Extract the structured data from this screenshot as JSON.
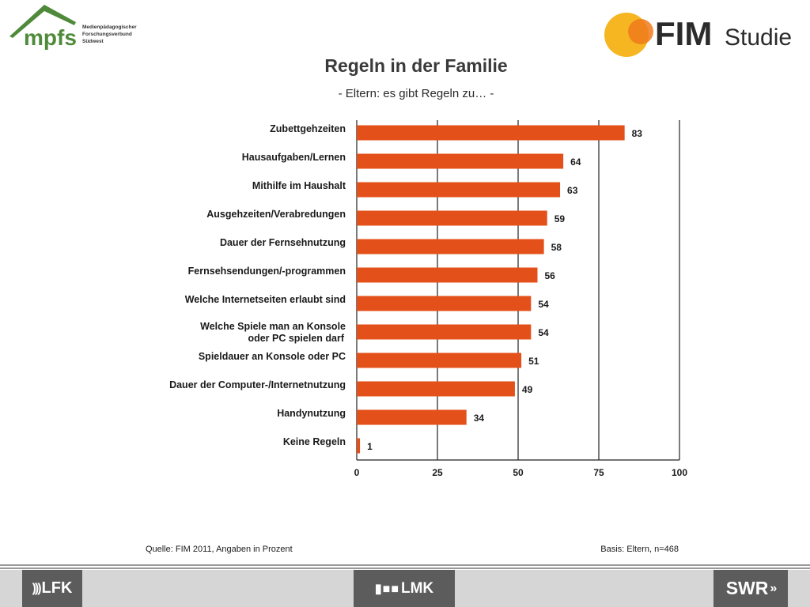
{
  "logos": {
    "mpfs": {
      "name": "mpfs",
      "lines": [
        "Medienpädagogischer",
        "Forschungsverbund",
        "Südwest"
      ]
    },
    "fim": {
      "name": "FIM",
      "suffix": "Studie"
    },
    "lfk": "LFK",
    "lmk": "LMK",
    "swr": "SWR"
  },
  "colors": {
    "bar": "#e4501a",
    "mpfs_green": "#4f8a3a",
    "fim_yellow": "#f5b622",
    "fim_orange": "#f07a1c",
    "footer_dark": "#5c5c5c",
    "footer_light": "#d6d6d6"
  },
  "chart_data": {
    "type": "bar",
    "orientation": "horizontal",
    "title": "Regeln in der Familie",
    "subtitle": "- Eltern: es gibt Regeln zu… -",
    "categories": [
      "Zubettgehzeiten",
      "Hausaufgaben/Lernen",
      "Mithilfe im Haushalt",
      "Ausgehzeiten/Verabredungen",
      "Dauer der Fernsehnutzung",
      "Fernsehsendungen/-programmen",
      "Welche Internetseiten erlaubt sind",
      "Welche Spiele man an Konsole oder PC spielen darf",
      "Spieldauer an Konsole oder PC",
      "Dauer der Computer-/Internetnutzung",
      "Handynutzung",
      "Keine Regeln"
    ],
    "values": [
      83,
      64,
      63,
      59,
      58,
      56,
      54,
      54,
      51,
      49,
      34,
      1
    ],
    "xlim": [
      0,
      100
    ],
    "ticks": [
      0,
      25,
      50,
      75,
      100
    ],
    "grid": true,
    "source": "Quelle: FIM 2011, Angaben in Prozent",
    "basis": "Basis: Eltern, n=468"
  }
}
